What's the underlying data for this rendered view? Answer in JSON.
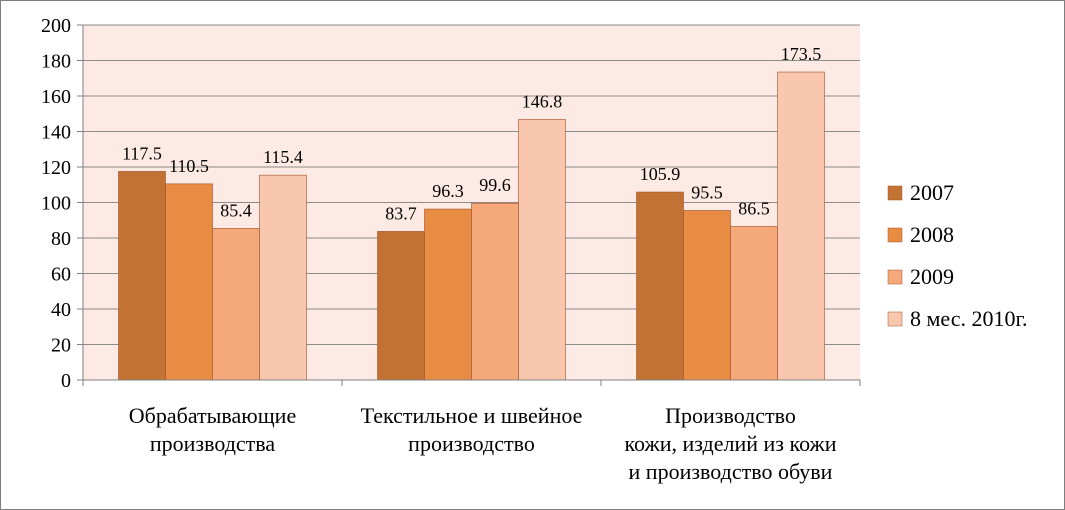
{
  "chart_data": {
    "type": "bar",
    "title": "",
    "xlabel": "",
    "ylabel": "",
    "ylim": [
      0,
      200
    ],
    "yticks": [
      0,
      20,
      40,
      60,
      80,
      100,
      120,
      140,
      160,
      180,
      200
    ],
    "grid": true,
    "legend_position": "right",
    "categories": [
      [
        "Обрабатывающие",
        "производства"
      ],
      [
        "Текстильное и швейное",
        "производство"
      ],
      [
        "Производство",
        "кожи, изделий из кожи",
        "и производство обуви"
      ]
    ],
    "series": [
      {
        "name": "2007",
        "color": "#c27334",
        "values": [
          117.5,
          83.7,
          105.9
        ]
      },
      {
        "name": "2008",
        "color": "#e88b43",
        "values": [
          110.5,
          96.3,
          95.5
        ]
      },
      {
        "name": "2009",
        "color": "#f5a97a",
        "values": [
          85.4,
          99.6,
          86.5
        ]
      },
      {
        "name": "8 мес. 2010г.",
        "color": "#f9c7ad",
        "values": [
          115.4,
          146.8,
          173.5
        ]
      }
    ],
    "data_labels": [
      [
        "117.5",
        "83.7",
        "105.9"
      ],
      [
        "110.5",
        "96.3",
        "95.5"
      ],
      [
        "85.4",
        "99.6",
        "86.5"
      ],
      [
        "115.4",
        "146.8",
        "173.5"
      ]
    ],
    "plot_background": "#fdeae4"
  }
}
